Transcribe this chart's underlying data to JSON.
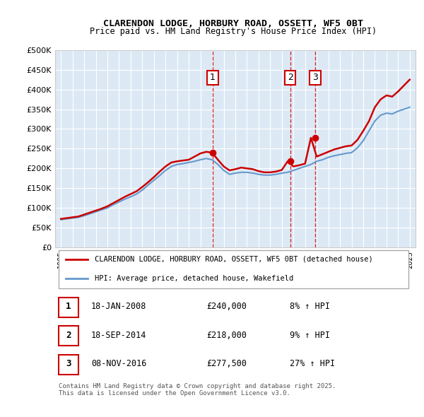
{
  "title": "CLARENDON LODGE, HORBURY ROAD, OSSETT, WF5 0BT",
  "subtitle": "Price paid vs. HM Land Registry's House Price Index (HPI)",
  "background_color": "#dce9f5",
  "plot_bg_color": "#dce9f5",
  "legend_label_red": "CLARENDON LODGE, HORBURY ROAD, OSSETT, WF5 0BT (detached house)",
  "legend_label_blue": "HPI: Average price, detached house, Wakefield",
  "transactions": [
    {
      "num": 1,
      "date": "18-JAN-2008",
      "price": 240000,
      "hpi_pct": "8% ↑ HPI",
      "year": 2008.05
    },
    {
      "num": 2,
      "date": "18-SEP-2014",
      "price": 218000,
      "hpi_pct": "9% ↑ HPI",
      "year": 2014.72
    },
    {
      "num": 3,
      "date": "08-NOV-2016",
      "price": 277500,
      "hpi_pct": "27% ↑ HPI",
      "year": 2016.86
    }
  ],
  "footer": "Contains HM Land Registry data © Crown copyright and database right 2025.\nThis data is licensed under the Open Government Licence v3.0.",
  "ylim": [
    0,
    500000
  ],
  "yticks": [
    0,
    50000,
    100000,
    150000,
    200000,
    250000,
    300000,
    350000,
    400000,
    450000,
    500000
  ],
  "xlim_start": 1994.5,
  "xlim_end": 2025.5,
  "red_color": "#cc0000",
  "blue_color": "#6699cc",
  "vline_color": "#cc0000",
  "hpi_x": [
    1995,
    1995.5,
    1996,
    1996.5,
    1997,
    1997.5,
    1998,
    1998.5,
    1999,
    1999.5,
    2000,
    2000.5,
    2001,
    2001.5,
    2002,
    2002.5,
    2003,
    2003.5,
    2004,
    2004.5,
    2005,
    2005.5,
    2006,
    2006.5,
    2007,
    2007.5,
    2008,
    2008.5,
    2009,
    2009.5,
    2010,
    2010.5,
    2011,
    2011.5,
    2012,
    2012.5,
    2013,
    2013.5,
    2014,
    2014.5,
    2015,
    2015.5,
    2016,
    2016.5,
    2017,
    2017.5,
    2018,
    2018.5,
    2019,
    2019.5,
    2020,
    2020.5,
    2021,
    2021.5,
    2022,
    2022.5,
    2023,
    2023.5,
    2024,
    2024.5,
    2025
  ],
  "hpi_y": [
    70000,
    72000,
    74000,
    76000,
    80000,
    85000,
    90000,
    95000,
    100000,
    108000,
    115000,
    122000,
    128000,
    135000,
    145000,
    158000,
    170000,
    182000,
    195000,
    205000,
    210000,
    212000,
    215000,
    218000,
    222000,
    225000,
    222000,
    210000,
    195000,
    185000,
    188000,
    190000,
    190000,
    188000,
    185000,
    183000,
    183000,
    185000,
    188000,
    190000,
    195000,
    200000,
    205000,
    210000,
    218000,
    222000,
    228000,
    232000,
    235000,
    238000,
    240000,
    252000,
    270000,
    295000,
    320000,
    335000,
    340000,
    338000,
    345000,
    350000,
    355000
  ],
  "price_x": [
    1995,
    1995.5,
    1996,
    1996.5,
    1997,
    1997.5,
    1998,
    1998.5,
    1999,
    1999.5,
    2000,
    2000.5,
    2001,
    2001.5,
    2002,
    2002.5,
    2003,
    2003.5,
    2004,
    2004.5,
    2005,
    2005.5,
    2006,
    2006.5,
    2007,
    2007.5,
    2008,
    2008.5,
    2009,
    2009.5,
    2010,
    2010.5,
    2011,
    2011.5,
    2012,
    2012.5,
    2013,
    2013.5,
    2014,
    2014.5,
    2015,
    2015.5,
    2016,
    2016.5,
    2017,
    2017.5,
    2018,
    2018.5,
    2019,
    2019.5,
    2020,
    2020.5,
    2021,
    2021.5,
    2022,
    2022.5,
    2023,
    2023.5,
    2024,
    2024.5,
    2025
  ],
  "price_y": [
    72000,
    74000,
    76000,
    78000,
    83000,
    88000,
    93000,
    98000,
    104000,
    112000,
    120000,
    128000,
    135000,
    142000,
    153000,
    165000,
    178000,
    192000,
    205000,
    215000,
    218000,
    220000,
    222000,
    230000,
    238000,
    242000,
    240000,
    222000,
    205000,
    195000,
    198000,
    202000,
    200000,
    198000,
    193000,
    190000,
    190000,
    192000,
    196000,
    218000,
    205000,
    208000,
    212000,
    277500,
    230000,
    236000,
    242000,
    248000,
    252000,
    256000,
    258000,
    272000,
    295000,
    320000,
    355000,
    375000,
    385000,
    382000,
    395000,
    410000,
    425000
  ]
}
